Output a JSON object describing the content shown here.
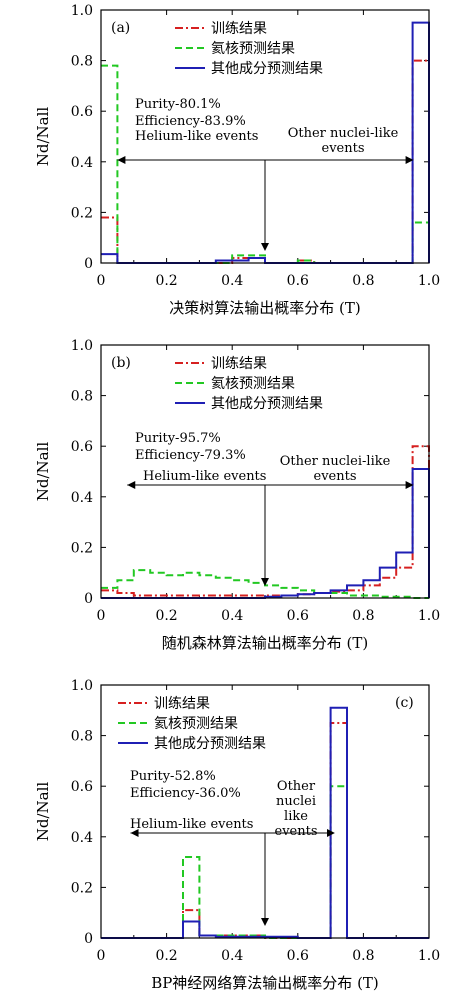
{
  "chart_data": [
    {
      "type": "line",
      "panel_label": "(a)",
      "xlabel": "决策树算法输出概率分布 (T)",
      "ylabel": "Nd/Nall",
      "xlim": [
        0,
        1.0
      ],
      "ylim": [
        0,
        1.0
      ],
      "x_ticks": [
        "0",
        "0.2",
        "0.4",
        "0.6",
        "0.8",
        "1.0"
      ],
      "y_ticks": [
        "0",
        "0.2",
        "0.4",
        "0.6",
        "0.8",
        "1.0"
      ],
      "legend_position": "top-right",
      "bin_edges": [
        0,
        0.05,
        0.1,
        0.15,
        0.2,
        0.25,
        0.3,
        0.35,
        0.4,
        0.45,
        0.5,
        0.55,
        0.6,
        0.65,
        0.7,
        0.75,
        0.8,
        0.85,
        0.9,
        0.95,
        1.0
      ],
      "series": [
        {
          "name": "训练结果",
          "color": "#d62020",
          "dash": "dashdot",
          "values": [
            0.18,
            0.0,
            0.0,
            0.0,
            0.0,
            0.0,
            0.0,
            0.0,
            0.02,
            0.02,
            0.0,
            0.0,
            0.01,
            0.0,
            0.0,
            0.0,
            0.0,
            0.0,
            0.0,
            0.8
          ]
        },
        {
          "name": "氦核预测结果",
          "color": "#22c822",
          "dash": "dashed",
          "values": [
            0.78,
            0.0,
            0.0,
            0.0,
            0.0,
            0.0,
            0.0,
            0.0,
            0.03,
            0.03,
            0.0,
            0.0,
            0.01,
            0.0,
            0.0,
            0.0,
            0.0,
            0.0,
            0.0,
            0.16
          ]
        },
        {
          "name": "其他成分预测结果",
          "color": "#1f1fb4",
          "dash": "solid",
          "values": [
            0.035,
            0.0,
            0.0,
            0.0,
            0.0,
            0.0,
            0.0,
            0.01,
            0.01,
            0.02,
            0.0,
            0.0,
            0.0,
            0.0,
            0.0,
            0.0,
            0.0,
            0.0,
            0.0,
            0.95
          ]
        }
      ],
      "annotations": {
        "purity": "Purity-80.1%",
        "efficiency": "Efficiency-83.9%",
        "helium": "Helium-like events",
        "other_line1": "Other nuclei-like",
        "other_line2": "events"
      },
      "arrow_span": [
        0.05,
        0.95
      ],
      "cut": 0.5
    },
    {
      "type": "line",
      "panel_label": "(b)",
      "xlabel": "随机森林算法输出概率分布 (T)",
      "ylabel": "Nd/Nall",
      "xlim": [
        0,
        1.0
      ],
      "ylim": [
        0,
        1.0
      ],
      "x_ticks": [
        "0",
        "0.2",
        "0.4",
        "0.6",
        "0.8",
        "1.0"
      ],
      "y_ticks": [
        "0",
        "0.2",
        "0.4",
        "0.6",
        "0.8",
        "1.0"
      ],
      "legend_position": "top-right",
      "bin_edges": [
        0,
        0.05,
        0.1,
        0.15,
        0.2,
        0.25,
        0.3,
        0.35,
        0.4,
        0.45,
        0.5,
        0.55,
        0.6,
        0.65,
        0.7,
        0.75,
        0.8,
        0.85,
        0.9,
        0.95,
        1.0
      ],
      "series": [
        {
          "name": "训练结果",
          "color": "#d62020",
          "dash": "dashdot",
          "values": [
            0.03,
            0.02,
            0.01,
            0.01,
            0.01,
            0.01,
            0.01,
            0.01,
            0.01,
            0.01,
            0.01,
            0.01,
            0.015,
            0.02,
            0.025,
            0.03,
            0.05,
            0.08,
            0.12,
            0.6
          ]
        },
        {
          "name": "氦核预测结果",
          "color": "#22c822",
          "dash": "dashed",
          "values": [
            0.04,
            0.07,
            0.11,
            0.1,
            0.09,
            0.1,
            0.09,
            0.08,
            0.07,
            0.06,
            0.05,
            0.04,
            0.03,
            0.02,
            0.02,
            0.01,
            0.01,
            0.005,
            0.005,
            0.0
          ]
        },
        {
          "name": "其他成分预测结果",
          "color": "#1f1fb4",
          "dash": "solid",
          "values": [
            0.0,
            0.0,
            0.0,
            0.0,
            0.0,
            0.0,
            0.0,
            0.0,
            0.0,
            0.0,
            0.005,
            0.01,
            0.015,
            0.02,
            0.03,
            0.05,
            0.07,
            0.12,
            0.18,
            0.51
          ]
        }
      ],
      "annotations": {
        "purity": "Purity-95.7%",
        "efficiency": "Efficiency-79.3%",
        "helium": "Helium-like events",
        "other_line1": "Other nuclei-like",
        "other_line2": "events"
      },
      "arrow_span": [
        0.08,
        0.95
      ],
      "cut": 0.5
    },
    {
      "type": "line",
      "panel_label": "(c)",
      "xlabel": "BP神经网络算法输出概率分布 (T)",
      "ylabel": "Nd/Nall",
      "xlim": [
        0,
        1.0
      ],
      "ylim": [
        0,
        1.0
      ],
      "x_ticks": [
        "0",
        "0.2",
        "0.4",
        "0.6",
        "0.8",
        "1.0"
      ],
      "y_ticks": [
        "0",
        "0.2",
        "0.4",
        "0.6",
        "0.8",
        "1.0"
      ],
      "legend_position": "top-left",
      "bin_edges": [
        0,
        0.05,
        0.1,
        0.15,
        0.2,
        0.25,
        0.3,
        0.35,
        0.4,
        0.45,
        0.5,
        0.55,
        0.6,
        0.65,
        0.7,
        0.75,
        0.8,
        0.85,
        0.9,
        0.95,
        1.0
      ],
      "series": [
        {
          "name": "训练结果",
          "color": "#d62020",
          "dash": "dashdot",
          "values": [
            0.0,
            0.0,
            0.0,
            0.0,
            0.0,
            0.11,
            0.01,
            0.01,
            0.01,
            0.01,
            0.0,
            0.0,
            0.0,
            0.0,
            0.85,
            0.0,
            0.0,
            0.0,
            0.0,
            0.0
          ]
        },
        {
          "name": "氦核预测结果",
          "color": "#22c822",
          "dash": "dashed",
          "values": [
            0.0,
            0.0,
            0.0,
            0.0,
            0.0,
            0.32,
            0.01,
            0.01,
            0.01,
            0.01,
            0.0,
            0.0,
            0.0,
            0.0,
            0.6,
            0.0,
            0.0,
            0.0,
            0.0,
            0.0
          ]
        },
        {
          "name": "其他成分预测结果",
          "color": "#1f1fb4",
          "dash": "solid",
          "values": [
            0.0,
            0.0,
            0.0,
            0.0,
            0.0,
            0.065,
            0.01,
            0.005,
            0.005,
            0.005,
            0.005,
            0.005,
            0.0,
            0.0,
            0.91,
            0.0,
            0.0,
            0.0,
            0.0,
            0.0
          ]
        }
      ],
      "annotations": {
        "purity": "Purity-52.8%",
        "efficiency": "Efficiency-36.0%",
        "helium": "Helium-like events",
        "other_line1": "Other",
        "other_line2": "nuclei",
        "other_line3": "like",
        "other_line4": "events"
      },
      "arrow_span": [
        0.09,
        0.71
      ],
      "cut": 0.5
    }
  ]
}
